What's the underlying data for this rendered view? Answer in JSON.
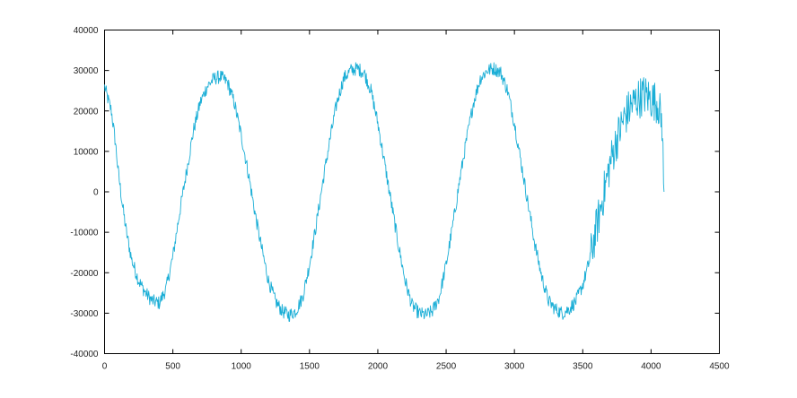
{
  "chart_data": {
    "type": "line",
    "title": "",
    "xlabel": "",
    "ylabel": "",
    "xlim": [
      0,
      4500
    ],
    "ylim": [
      -40000,
      40000
    ],
    "x_ticks": [
      0,
      500,
      1000,
      1500,
      2000,
      2500,
      3000,
      3500,
      4000,
      4500
    ],
    "y_ticks": [
      40000,
      30000,
      20000,
      10000,
      0,
      -10000,
      -20000,
      -30000,
      -40000
    ],
    "x_tick_labels": [
      "0",
      "500",
      "1000",
      "1500",
      "2000",
      "2500",
      "3000",
      "3500",
      "4000",
      "4500"
    ],
    "y_tick_labels": [
      "40000",
      "30000",
      "20000",
      "10000",
      "0",
      "-10000",
      "-20000",
      "-30000",
      "-40000"
    ],
    "grid": false,
    "legend": "none",
    "series": [
      {
        "color": "#1aaed6",
        "x": [
          0,
          20,
          50,
          80,
          100,
          130,
          160,
          200,
          250,
          300,
          350,
          400,
          450,
          500,
          550,
          600,
          650,
          700,
          750,
          800,
          850,
          900,
          950,
          1000,
          1050,
          1100,
          1150,
          1200,
          1250,
          1300,
          1350,
          1400,
          1450,
          1500,
          1550,
          1600,
          1650,
          1700,
          1750,
          1800,
          1850,
          1900,
          1950,
          2000,
          2050,
          2100,
          2150,
          2200,
          2250,
          2300,
          2350,
          2400,
          2450,
          2500,
          2550,
          2600,
          2650,
          2700,
          2750,
          2800,
          2850,
          2900,
          2950,
          3000,
          3050,
          3100,
          3150,
          3200,
          3250,
          3300,
          3350,
          3400,
          3450,
          3500,
          3550,
          3600,
          3650,
          3700,
          3750,
          3800,
          3850,
          3900,
          3950,
          4000,
          4050,
          4080,
          4095
        ],
        "y": [
          26000,
          23500,
          20000,
          12000,
          5000,
          -3000,
          -10000,
          -17000,
          -22000,
          -25000,
          -27000,
          -27500,
          -24000,
          -16000,
          -5000,
          5000,
          15000,
          22000,
          26000,
          28000,
          28500,
          27000,
          22000,
          14000,
          5000,
          -5000,
          -14000,
          -22000,
          -27000,
          -29500,
          -30500,
          -29500,
          -26000,
          -18000,
          -8000,
          3000,
          13000,
          22000,
          28000,
          30000,
          30500,
          29500,
          25000,
          17000,
          7000,
          -3000,
          -13000,
          -22000,
          -28000,
          -30000,
          -30500,
          -29500,
          -26000,
          -18000,
          -8000,
          3000,
          13000,
          22000,
          28000,
          30000,
          30500,
          29500,
          25000,
          17000,
          7000,
          -3000,
          -13000,
          -21000,
          -27000,
          -29000,
          -30000,
          -29000,
          -27000,
          -23000,
          -17000,
          -9000,
          -1000,
          7000,
          13000,
          18000,
          21000,
          23000,
          24000,
          23000,
          22000,
          17000,
          0
        ]
      }
    ]
  }
}
